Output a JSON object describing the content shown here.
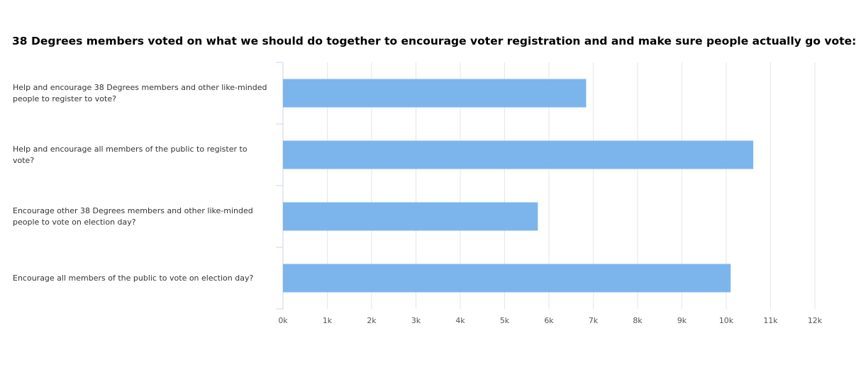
{
  "chart_data": {
    "type": "bar",
    "orientation": "horizontal",
    "title": "38 Degrees members voted on what we should do together to encourage voter registration and and make sure people actually go vote:",
    "categories": [
      "Help and encourage 38 Degrees members and other like-minded people to register to vote?",
      "Help and encourage all members of the public to register to vote?",
      "Encourage other 38 Degrees members and other like-minded people to vote on election day?",
      "Encourage all members of the public to vote on election day?"
    ],
    "values": [
      6840,
      10610,
      5750,
      10100
    ],
    "color": "#7cb5ec",
    "xlim": [
      0,
      12000
    ],
    "xticks": [
      {
        "value": 0,
        "label": "0k"
      },
      {
        "value": 1000,
        "label": "1k"
      },
      {
        "value": 2000,
        "label": "2k"
      },
      {
        "value": 3000,
        "label": "3k"
      },
      {
        "value": 4000,
        "label": "4k"
      },
      {
        "value": 5000,
        "label": "5k"
      },
      {
        "value": 6000,
        "label": "6k"
      },
      {
        "value": 7000,
        "label": "7k"
      },
      {
        "value": 8000,
        "label": "8k"
      },
      {
        "value": 9000,
        "label": "9k"
      },
      {
        "value": 10000,
        "label": "10k"
      },
      {
        "value": 11000,
        "label": "11k"
      },
      {
        "value": 12000,
        "label": "12k"
      }
    ],
    "grid": true
  }
}
